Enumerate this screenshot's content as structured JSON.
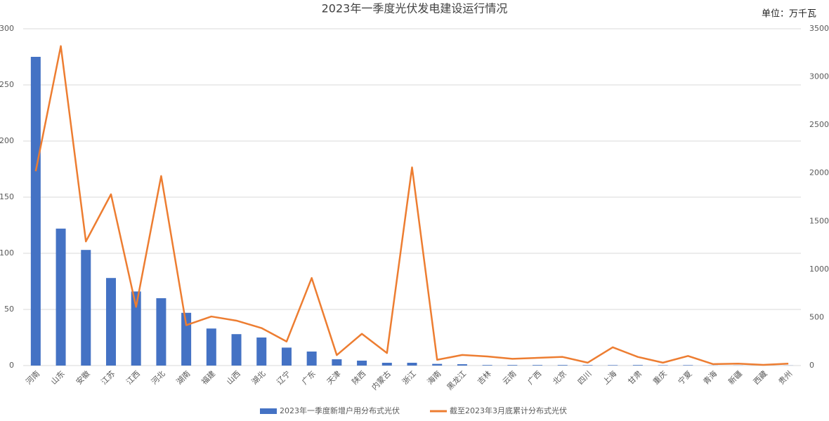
{
  "chart_data": {
    "type": "bar",
    "title": "2023年一季度光伏发电建设运行情况",
    "unit": "单位：万千瓦",
    "categories": [
      "河南",
      "山东",
      "安徽",
      "江苏",
      "江西",
      "河北",
      "湖南",
      "福建",
      "山西",
      "湖北",
      "辽宁",
      "广东",
      "天津",
      "陕西",
      "内蒙古",
      "浙江",
      "海南",
      "黑龙江",
      "吉林",
      "云南",
      "广西",
      "北京",
      "四川",
      "上海",
      "甘肃",
      "重庆",
      "宁夏",
      "青海",
      "新疆",
      "西藏",
      "贵州"
    ],
    "series": [
      {
        "name": "2023年一季度新增户用分布式光伏",
        "type": "bar",
        "color": "#4472c4",
        "values": [
          275,
          122,
          103,
          78,
          66,
          60,
          47,
          33,
          28,
          25,
          16,
          12.5,
          5.6,
          4.4,
          2.5,
          2.5,
          1.5,
          1.2,
          0.5,
          0.5,
          0.5,
          0.5,
          0.4,
          0.4,
          0.5,
          0.3,
          0.4,
          0.1,
          0.1,
          0,
          0.1
        ]
      },
      {
        "name": "截至2023年3月底累计分布式光伏",
        "type": "line",
        "axis": "y2",
        "color": "#ed7d31",
        "values": [
          2020,
          3320,
          1290,
          1780,
          610,
          1970,
          420,
          510,
          467,
          390,
          250,
          910,
          109,
          330,
          130,
          2060,
          60,
          110,
          95,
          70,
          80,
          90,
          30,
          190,
          90,
          30,
          100,
          15,
          20,
          7,
          20
        ]
      }
    ],
    "ylim": [
      0,
      300
    ],
    "yticks": [
      0,
      50,
      100,
      150,
      200,
      250,
      300
    ],
    "y2lim": [
      0,
      3500
    ],
    "y2ticks": [
      0,
      500,
      1000,
      1500,
      2000,
      2500,
      3000,
      3500
    ],
    "grid": true,
    "legend": "bottom"
  }
}
